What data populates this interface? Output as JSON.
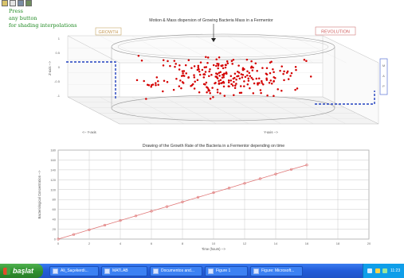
{
  "toolbar": {
    "buttons": [
      "toolbar-open-icon",
      "toolbar-save-icon",
      "toolbar-print-icon",
      "toolbar-figure-icon"
    ]
  },
  "notes": {
    "lines": [
      "Press",
      "any button",
      "for shading interpolations"
    ]
  },
  "boxes": {
    "growth": "GROWTH",
    "revolution": "REVOLUTION",
    "side_letters": [
      "M",
      "A",
      "P"
    ]
  },
  "chart_data": [
    {
      "type": "scatter",
      "title": "Motion & Mass dispersion of Growing Bacteria Mass in a Fermentor",
      "xlabel": "<-- Y-axis",
      "ylabel": "Y-axis -->",
      "zlabel": "Z-axis -->",
      "zticks": [
        "1",
        "0.5",
        "0",
        "-0.5",
        "-1"
      ],
      "point_count": 250,
      "point_color": "#d40000"
    },
    {
      "type": "line",
      "title": "Drawing of the Growth Rate of the Bacteria in a Fermentor depending on time",
      "xlabel": "Time (hours) -->",
      "ylabel": "Bacteriological Concentration -->",
      "x_ticks": [
        "0",
        "2",
        "4",
        "6",
        "8",
        "10",
        "12",
        "14",
        "16",
        "18",
        "20"
      ],
      "y_ticks": [
        "0",
        "20",
        "40",
        "60",
        "80",
        "100",
        "120",
        "140",
        "160",
        "180"
      ],
      "xlim": [
        0,
        20
      ],
      "ylim": [
        0,
        180
      ],
      "grid": true,
      "line_color": "#e07878",
      "series": [
        {
          "x": [
            0,
            1,
            2,
            3,
            4,
            5,
            6,
            7,
            8,
            9,
            10,
            11,
            12,
            13,
            14,
            15,
            16
          ],
          "values": [
            0,
            9.4,
            18.8,
            28.2,
            37.6,
            47,
            56.4,
            65.8,
            75.2,
            84.6,
            94,
            103.4,
            112.8,
            122.2,
            131.6,
            141,
            150
          ]
        }
      ]
    }
  ],
  "taskbar": {
    "start_label": "başlat",
    "tasks": [
      "Ali_Saçekerdi...",
      "MATLAB",
      "Documentos and...",
      "Figure 1",
      "Figure: Microsoft..."
    ],
    "clock": "11:23"
  }
}
